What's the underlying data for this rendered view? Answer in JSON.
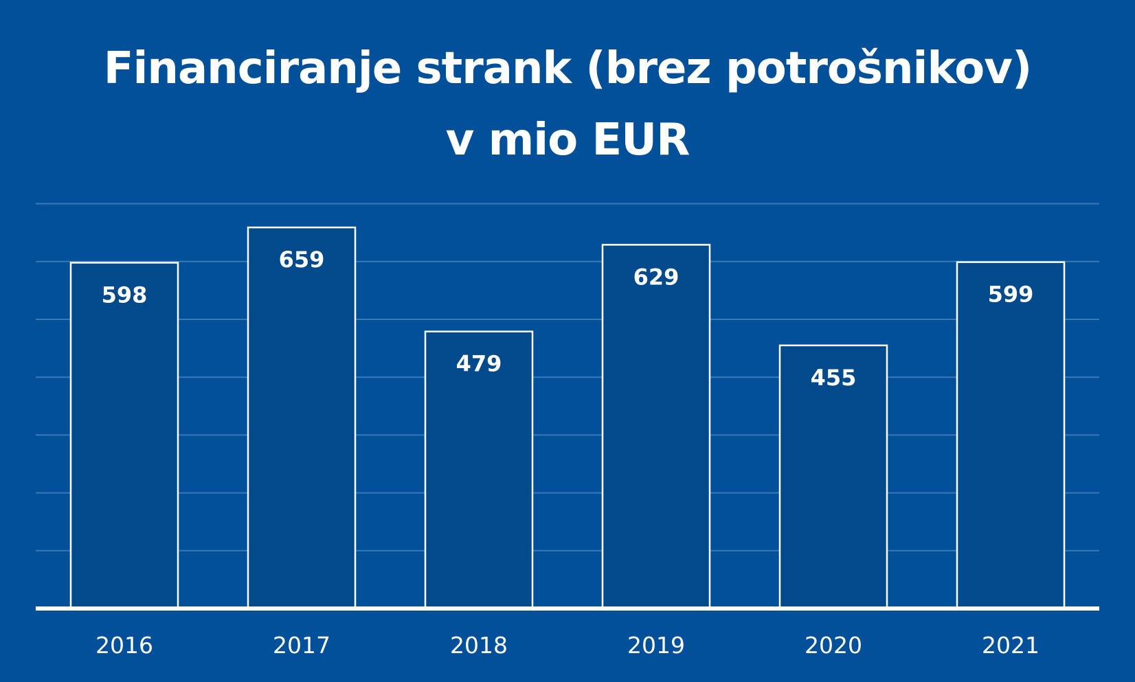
{
  "colors": {
    "background": "#02509a",
    "bar_fill": "#024a8c",
    "bar_stroke": "#ffffff",
    "gridline": "#3d78b6",
    "axis": "#ffffff",
    "text": "#ffffff"
  },
  "chart_data": {
    "type": "bar",
    "title": "Financiranje strank (brez potrošnikov) v mio EUR",
    "title_lines": [
      "Financiranje strank (brez potrošnikov)",
      "v mio EUR"
    ],
    "xlabel": "",
    "ylabel": "",
    "categories": [
      "2016",
      "2017",
      "2018",
      "2019",
      "2020",
      "2021"
    ],
    "values": [
      598,
      659,
      479,
      629,
      455,
      599
    ],
    "data_labels": [
      "598",
      "659",
      "479",
      "629",
      "455",
      "599"
    ],
    "ylim": [
      0,
      700
    ],
    "gridline_step": 100,
    "grid": true,
    "legend": "none"
  }
}
